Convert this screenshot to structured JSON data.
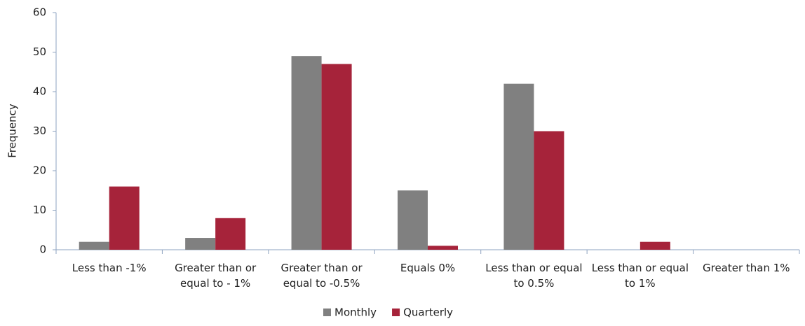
{
  "chart_data": {
    "type": "bar",
    "y_label": "Frequency",
    "categories": [
      "Less than -1%",
      "Greater than or equal to - 1%",
      "Greater than or equal to -0.5%",
      "Equals 0%",
      "Less than or equal to 0.5%",
      "Less than or equal to 1%",
      "Greater than 1%"
    ],
    "series": [
      {
        "name": "Monthly",
        "color": "#808080",
        "values": [
          2,
          3,
          49,
          15,
          42,
          0,
          0
        ]
      },
      {
        "name": "Quarterly",
        "color": "#a6233a",
        "values": [
          16,
          8,
          47,
          1,
          30,
          2,
          0
        ]
      }
    ],
    "ylim": [
      0,
      60
    ],
    "yticks": [
      0,
      10,
      20,
      30,
      40,
      50,
      60
    ],
    "grid": false,
    "legend": "bottom"
  }
}
